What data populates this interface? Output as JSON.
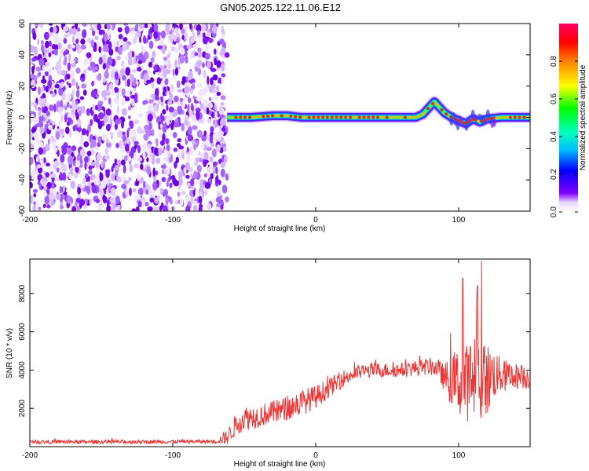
{
  "figure": {
    "title": "GN05.2025.122.11.06.E12"
  },
  "chart_data": [
    {
      "type": "heatmap",
      "title": "GN05.2025.122.11.06.E12",
      "xlabel": "Height of straight line (km)",
      "ylabel": "Frequency (Hz)",
      "xlim": [
        -200,
        150
      ],
      "ylim": [
        -60,
        60
      ],
      "xticks": [
        -200,
        -100,
        0,
        100
      ],
      "yticks": [
        -60,
        -40,
        -20,
        0,
        20,
        40,
        60
      ],
      "colorbar": {
        "label": "Normalized spectral amplitude",
        "range": [
          0,
          1
        ],
        "ticks": [
          "0.0",
          "0.2",
          "0.4",
          "0.6",
          "0.8"
        ],
        "colormap": [
          "#ffffff",
          "#8000ff",
          "#0000ff",
          "#00ffff",
          "#00ff00",
          "#ffff00",
          "#ff8000",
          "#ff0000",
          "#ff0080"
        ]
      },
      "noise_region_x": [
        -200,
        -62
      ],
      "ridge": {
        "x": [
          -62,
          -55,
          -45,
          -30,
          -20,
          -10,
          0,
          20,
          40,
          60,
          70,
          75,
          80,
          83,
          86,
          90,
          95,
          100,
          105,
          110,
          115,
          120,
          130,
          140,
          150
        ],
        "freq": [
          0,
          0,
          0,
          1,
          1,
          0,
          0,
          0,
          0,
          0,
          0,
          2,
          7,
          10,
          7,
          3,
          0,
          -2,
          -4,
          -1,
          -3,
          -1,
          0,
          0,
          0
        ]
      },
      "grid": false
    },
    {
      "type": "line",
      "xlabel": "Height of straight line (km)",
      "ylabel": "SNR (10 * v/v)",
      "xlim": [
        -200,
        150
      ],
      "ylim": [
        0,
        9800
      ],
      "xticks": [
        -200,
        -100,
        0,
        100
      ],
      "yticks": [
        2000,
        4000,
        6000,
        8000
      ],
      "line_color": "#ee3333",
      "envelope": {
        "x": [
          -200,
          -150,
          -100,
          -70,
          -62,
          -55,
          -50,
          -40,
          -30,
          -20,
          -10,
          0,
          10,
          20,
          30,
          40,
          50,
          60,
          70,
          80,
          85,
          90,
          95,
          100,
          105,
          110,
          115,
          120,
          125,
          130,
          140,
          150
        ],
        "mean": [
          250,
          250,
          260,
          270,
          500,
          1200,
          1500,
          1600,
          1800,
          2000,
          2300,
          2600,
          3100,
          3600,
          3900,
          4000,
          4000,
          4000,
          4100,
          4200,
          4100,
          3600,
          3500,
          3400,
          3300,
          3600,
          3500,
          3500,
          3800,
          3700,
          3700,
          3600
        ],
        "spread": [
          100,
          100,
          100,
          100,
          400,
          600,
          650,
          600,
          600,
          650,
          700,
          600,
          500,
          450,
          400,
          400,
          380,
          380,
          420,
          450,
          500,
          700,
          1400,
          1800,
          2000,
          2300,
          2600,
          2000,
          1300,
          900,
          700,
          600
        ]
      },
      "peaks": [
        {
          "x": 103,
          "y": 8800
        },
        {
          "x": 116,
          "y": 9700
        },
        {
          "x": 113,
          "y": 8400
        }
      ],
      "grid": false
    }
  ]
}
